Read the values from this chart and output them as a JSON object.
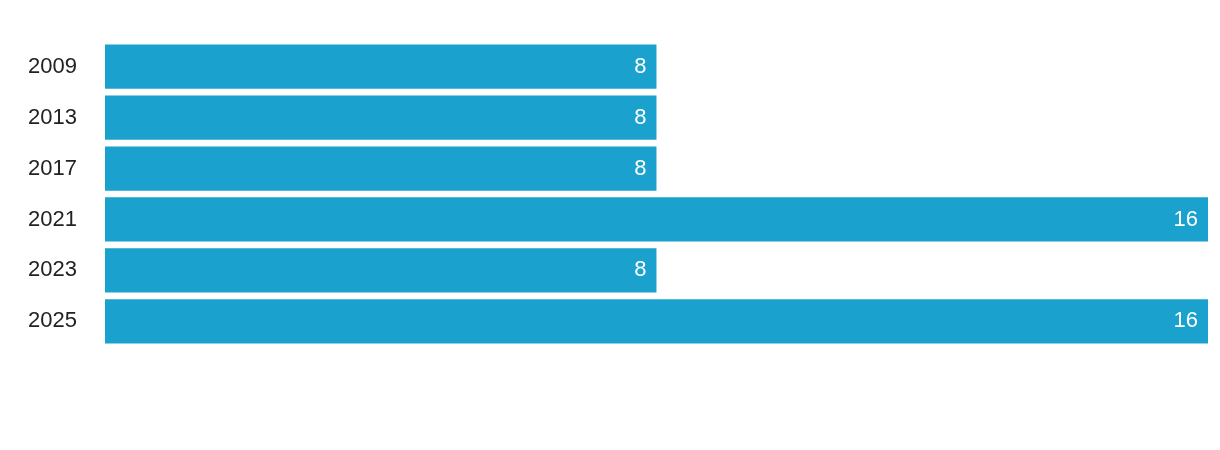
{
  "chart_data": {
    "type": "bar",
    "orientation": "horizontal",
    "categories": [
      "2009",
      "2013",
      "2017",
      "2021",
      "2023",
      "2025"
    ],
    "values": [
      8,
      8,
      8,
      16,
      8,
      16
    ],
    "color": "#1aa1ce",
    "data_labels": true
  }
}
